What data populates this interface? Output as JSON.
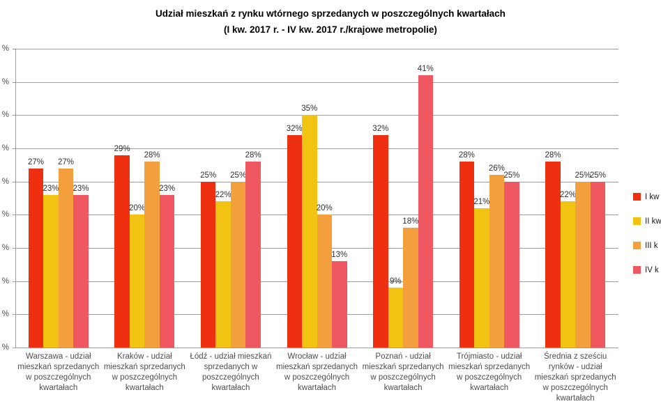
{
  "title": {
    "line1": "Udział mieszkań z rynku wtórnego sprzedanych w poszczególnych kwartałach",
    "line2": "(I kw. 2017 r. - IV kw. 2017 r./krajowe metropolie)"
  },
  "chart_data": {
    "type": "bar",
    "title": "Udział mieszkań z rynku wtórnego sprzedanych w poszczególnych kwartałach",
    "subtitle": "(I kw. 2017 r. - IV kw. 2017 r./krajowe metropolie)",
    "categories": [
      "Warszawa - udział mieszkań sprzedanych w poszczególnych kwartałach",
      "Kraków - udział mieszkań sprzedanych w poszczególnych kwartałach",
      "Łódź - udział mieszkań sprzedanych w poszczególnych kwartałach",
      "Wrocław - udział mieszkań sprzedanych w poszczególnych kwartałach",
      "Poznań - udział mieszkań sprzedanych w poszczególnych kwartałach",
      "Trójmiasto - udział mieszkań sprzedanych w poszczególnych kwartałach",
      "Średnia z sześciu rynków - udział mieszkań sprzedanych w poszczególnych kwartałach"
    ],
    "series": [
      {
        "name": "I kw",
        "color": "#EE3011",
        "values": [
          27,
          29,
          25,
          32,
          32,
          28,
          28
        ]
      },
      {
        "name": "II kw",
        "color": "#F3C314",
        "values": [
          23,
          20,
          22,
          35,
          9,
          21,
          22
        ]
      },
      {
        "name": "III k",
        "color": "#F49F3D",
        "values": [
          27,
          28,
          25,
          20,
          18,
          26,
          25
        ]
      },
      {
        "name": "IV k",
        "color": "#EF5860",
        "values": [
          23,
          23,
          28,
          13,
          41,
          25,
          25
        ]
      }
    ],
    "ylim": [
      0,
      45
    ],
    "ytick_step": 5,
    "y_tick_label_visible": "%",
    "data_label_suffix": "%",
    "grid": true,
    "legend_position": "right",
    "gridline_color": "#9C9C9C",
    "value_label_color": "#2F2F2F",
    "category_label_color": "#4D4D4D"
  }
}
